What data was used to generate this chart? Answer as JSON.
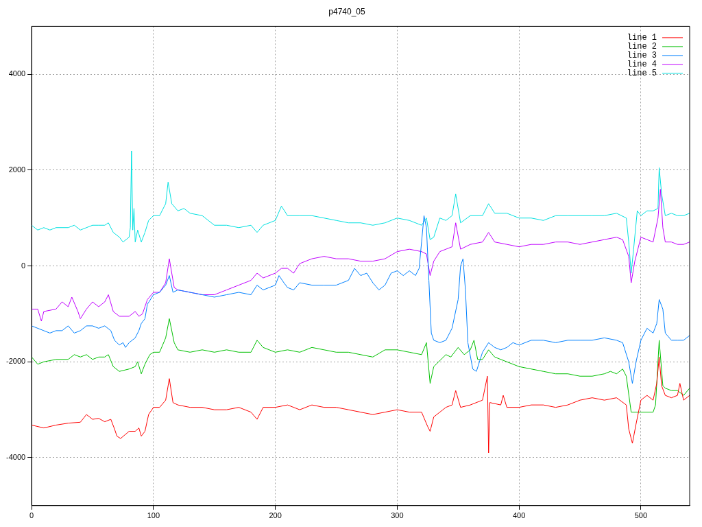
{
  "chart_data": {
    "type": "line",
    "title": "p4740_05",
    "xlim": [
      0,
      540
    ],
    "xticks": [
      0,
      100,
      200,
      300,
      400,
      500
    ],
    "ylim": [
      -5000,
      5000
    ],
    "yticks": [
      -4000,
      -2000,
      0,
      2000,
      4000
    ],
    "grid": true,
    "legend": "top right",
    "marker": "none",
    "line_style": "solid",
    "series": [
      {
        "name": "line 1",
        "color": "#ff0000",
        "x": [
          0,
          10,
          20,
          30,
          40,
          45,
          50,
          55,
          60,
          65,
          68,
          70,
          73,
          80,
          85,
          88,
          90,
          93,
          96,
          100,
          105,
          110,
          113,
          116,
          120,
          130,
          140,
          150,
          160,
          170,
          180,
          185,
          190,
          200,
          210,
          220,
          230,
          240,
          250,
          260,
          270,
          280,
          290,
          300,
          310,
          320,
          325,
          327,
          330,
          340,
          345,
          348,
          352,
          360,
          370,
          374,
          375,
          376,
          385,
          387,
          390,
          400,
          410,
          420,
          430,
          440,
          450,
          460,
          470,
          480,
          488,
          490,
          493,
          496,
          500,
          505,
          510,
          513,
          515,
          517,
          520,
          525,
          530,
          532,
          535,
          540
        ],
        "values": [
          -3320,
          -3380,
          -3320,
          -3280,
          -3260,
          -3100,
          -3200,
          -3180,
          -3250,
          -3200,
          -3400,
          -3550,
          -3600,
          -3450,
          -3450,
          -3380,
          -3550,
          -3450,
          -3100,
          -2950,
          -2950,
          -2800,
          -2350,
          -2850,
          -2900,
          -2950,
          -2950,
          -3000,
          -3000,
          -2950,
          -3050,
          -3200,
          -2950,
          -2950,
          -2900,
          -3000,
          -2900,
          -2950,
          -2950,
          -3000,
          -3050,
          -3100,
          -3050,
          -3000,
          -3050,
          -3050,
          -3350,
          -3450,
          -3150,
          -2950,
          -2900,
          -2600,
          -2950,
          -2900,
          -2800,
          -2300,
          -3900,
          -2850,
          -2900,
          -2700,
          -2950,
          -2950,
          -2900,
          -2900,
          -2950,
          -2900,
          -2800,
          -2750,
          -2800,
          -2750,
          -2900,
          -3400,
          -3700,
          -3300,
          -2800,
          -2700,
          -2800,
          -2450,
          -1900,
          -2500,
          -2700,
          -2750,
          -2700,
          -2450,
          -2800,
          -2700
        ]
      },
      {
        "name": "line 2",
        "color": "#00c000",
        "x": [
          0,
          5,
          10,
          20,
          30,
          35,
          40,
          45,
          50,
          55,
          60,
          63,
          67,
          72,
          80,
          85,
          87,
          90,
          93,
          97,
          100,
          105,
          110,
          113,
          117,
          120,
          130,
          140,
          150,
          160,
          170,
          180,
          185,
          190,
          200,
          210,
          220,
          230,
          240,
          250,
          260,
          270,
          280,
          290,
          300,
          310,
          320,
          324,
          327,
          330,
          340,
          344,
          350,
          355,
          360,
          363,
          366,
          370,
          375,
          380,
          390,
          400,
          410,
          420,
          430,
          440,
          450,
          460,
          470,
          475,
          480,
          485,
          488,
          492,
          500,
          510,
          512,
          515,
          518,
          520,
          525,
          530,
          535,
          540
        ],
        "values": [
          -1900,
          -2050,
          -2000,
          -1950,
          -1950,
          -1850,
          -1900,
          -1850,
          -1950,
          -1900,
          -1900,
          -1850,
          -2100,
          -2200,
          -2150,
          -2100,
          -2000,
          -2250,
          -2050,
          -1850,
          -1800,
          -1800,
          -1500,
          -1100,
          -1600,
          -1750,
          -1800,
          -1750,
          -1800,
          -1750,
          -1800,
          -1800,
          -1550,
          -1700,
          -1800,
          -1750,
          -1800,
          -1700,
          -1750,
          -1800,
          -1800,
          -1850,
          -1900,
          -1750,
          -1750,
          -1800,
          -1850,
          -1600,
          -2450,
          -2100,
          -1850,
          -1900,
          -1700,
          -1850,
          -1750,
          -1550,
          -1950,
          -1950,
          -1750,
          -1900,
          -2000,
          -2100,
          -2150,
          -2200,
          -2250,
          -2250,
          -2300,
          -2300,
          -2250,
          -2200,
          -2250,
          -2150,
          -2300,
          -3050,
          -3050,
          -3050,
          -2900,
          -1550,
          -2500,
          -2550,
          -2600,
          -2600,
          -2700,
          -2550
        ]
      },
      {
        "name": "line 3",
        "color": "#0080ff",
        "x": [
          0,
          5,
          10,
          15,
          20,
          25,
          30,
          35,
          40,
          45,
          50,
          55,
          60,
          65,
          68,
          72,
          75,
          77,
          80,
          85,
          88,
          90,
          93,
          95,
          100,
          105,
          110,
          113,
          116,
          120,
          130,
          140,
          150,
          160,
          170,
          180,
          185,
          190,
          200,
          203,
          207,
          210,
          215,
          220,
          230,
          240,
          250,
          260,
          265,
          270,
          275,
          280,
          285,
          290,
          295,
          300,
          305,
          310,
          315,
          318,
          320,
          322,
          324,
          326,
          328,
          330,
          335,
          340,
          345,
          350,
          352,
          354,
          356,
          358,
          362,
          365,
          370,
          375,
          380,
          385,
          390,
          395,
          400,
          410,
          420,
          430,
          440,
          450,
          460,
          470,
          480,
          485,
          490,
          493,
          496,
          500,
          505,
          510,
          513,
          515,
          518,
          520,
          525,
          530,
          535,
          540
        ],
        "values": [
          -1250,
          -1300,
          -1350,
          -1400,
          -1350,
          -1350,
          -1250,
          -1400,
          -1350,
          -1250,
          -1250,
          -1300,
          -1250,
          -1350,
          -1550,
          -1650,
          -1600,
          -1700,
          -1600,
          -1500,
          -1350,
          -1200,
          -1100,
          -800,
          -600,
          -550,
          -400,
          -200,
          -550,
          -500,
          -550,
          -600,
          -650,
          -600,
          -550,
          -600,
          -400,
          -500,
          -400,
          -200,
          -350,
          -450,
          -500,
          -350,
          -400,
          -400,
          -400,
          -300,
          -50,
          -200,
          -150,
          -350,
          -500,
          -400,
          -150,
          -100,
          -200,
          -100,
          -200,
          -50,
          500,
          1050,
          800,
          -300,
          -1400,
          -1550,
          -1600,
          -1550,
          -1300,
          -700,
          0,
          150,
          -500,
          -1600,
          -2150,
          -2200,
          -1800,
          -1600,
          -1700,
          -1750,
          -1700,
          -1600,
          -1650,
          -1550,
          -1550,
          -1600,
          -1550,
          -1550,
          -1550,
          -1500,
          -1550,
          -1600,
          -2000,
          -2450,
          -2000,
          -1550,
          -1300,
          -1400,
          -1200,
          -700,
          -900,
          -1400,
          -1550,
          -1550,
          -1550,
          -1450
        ]
      },
      {
        "name": "line 4",
        "color": "#c000ff",
        "x": [
          0,
          5,
          8,
          10,
          20,
          25,
          30,
          33,
          38,
          40,
          45,
          50,
          55,
          60,
          63,
          67,
          72,
          80,
          85,
          88,
          91,
          95,
          100,
          105,
          110,
          113,
          117,
          120,
          130,
          140,
          150,
          160,
          170,
          180,
          185,
          190,
          200,
          205,
          210,
          215,
          220,
          230,
          240,
          250,
          260,
          270,
          280,
          290,
          300,
          310,
          320,
          324,
          327,
          330,
          335,
          340,
          345,
          348,
          352,
          360,
          370,
          375,
          380,
          390,
          400,
          410,
          420,
          430,
          440,
          450,
          460,
          470,
          480,
          485,
          490,
          492,
          495,
          500,
          505,
          510,
          514,
          516,
          518,
          520,
          525,
          530,
          535,
          540
        ],
        "values": [
          -900,
          -900,
          -1150,
          -950,
          -900,
          -750,
          -850,
          -650,
          -950,
          -1100,
          -900,
          -750,
          -850,
          -750,
          -600,
          -950,
          -1050,
          -1050,
          -950,
          -1050,
          -1000,
          -700,
          -550,
          -550,
          -350,
          150,
          -450,
          -500,
          -550,
          -600,
          -600,
          -500,
          -400,
          -300,
          -150,
          -250,
          -150,
          -50,
          -50,
          -150,
          50,
          150,
          200,
          150,
          150,
          100,
          100,
          150,
          300,
          350,
          300,
          250,
          -200,
          100,
          300,
          350,
          400,
          900,
          350,
          450,
          500,
          700,
          500,
          450,
          400,
          450,
          450,
          500,
          500,
          450,
          500,
          550,
          600,
          550,
          200,
          -350,
          100,
          600,
          550,
          500,
          1000,
          1600,
          800,
          500,
          500,
          450,
          450,
          500
        ]
      },
      {
        "name": "line 5",
        "color": "#00e0e0",
        "x": [
          0,
          5,
          10,
          15,
          20,
          30,
          35,
          40,
          45,
          50,
          55,
          60,
          63,
          67,
          72,
          75,
          80,
          81,
          82,
          83,
          84,
          85,
          87,
          90,
          93,
          96,
          100,
          105,
          110,
          112,
          115,
          120,
          125,
          130,
          140,
          145,
          150,
          160,
          170,
          180,
          185,
          190,
          200,
          205,
          210,
          220,
          230,
          240,
          250,
          260,
          270,
          280,
          290,
          300,
          310,
          320,
          324,
          327,
          330,
          335,
          340,
          345,
          348,
          352,
          360,
          370,
          375,
          380,
          390,
          400,
          410,
          420,
          430,
          440,
          450,
          460,
          470,
          480,
          488,
          490,
          492,
          494,
          497,
          500,
          505,
          510,
          514,
          515,
          517,
          520,
          525,
          530,
          535,
          540
        ],
        "values": [
          850,
          750,
          800,
          750,
          800,
          800,
          850,
          750,
          800,
          850,
          850,
          850,
          900,
          700,
          600,
          500,
          600,
          800,
          2400,
          750,
          1200,
          500,
          750,
          500,
          700,
          950,
          1050,
          1050,
          1300,
          1750,
          1300,
          1150,
          1200,
          1100,
          1050,
          950,
          850,
          850,
          800,
          850,
          700,
          850,
          950,
          1250,
          1050,
          1050,
          1050,
          1000,
          950,
          900,
          900,
          850,
          900,
          1000,
          950,
          850,
          1000,
          550,
          600,
          1000,
          950,
          1050,
          1500,
          900,
          1050,
          1050,
          1300,
          1100,
          1100,
          1000,
          1000,
          950,
          1050,
          1050,
          1050,
          1050,
          1050,
          1100,
          1000,
          500,
          -150,
          350,
          1150,
          1050,
          1150,
          1150,
          1200,
          2050,
          1500,
          1050,
          1100,
          1050,
          1050,
          1100
        ]
      }
    ]
  }
}
